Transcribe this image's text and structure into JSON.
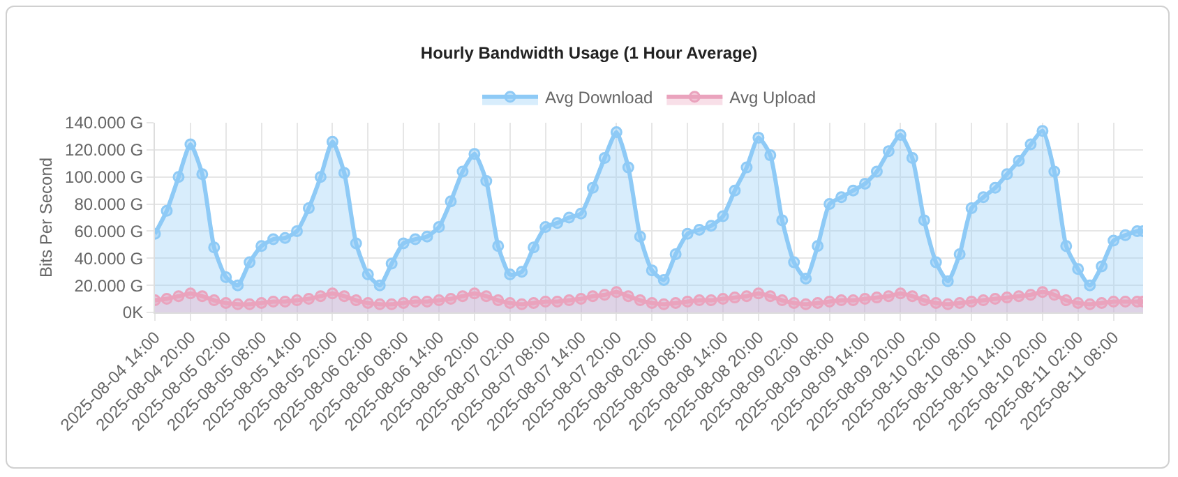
{
  "chart_data": {
    "type": "area",
    "title": "Hourly Bandwidth Usage (1 Hour Average)",
    "ylabel": "Bits Per Second",
    "x": [
      "2025-08-04T14:00",
      "2025-08-04T16:00",
      "2025-08-04T18:00",
      "2025-08-04T20:00",
      "2025-08-04T22:00",
      "2025-08-05T00:00",
      "2025-08-05T02:00",
      "2025-08-05T04:00",
      "2025-08-05T06:00",
      "2025-08-05T08:00",
      "2025-08-05T10:00",
      "2025-08-05T12:00",
      "2025-08-05T14:00",
      "2025-08-05T16:00",
      "2025-08-05T18:00",
      "2025-08-05T20:00",
      "2025-08-05T22:00",
      "2025-08-06T00:00",
      "2025-08-06T02:00",
      "2025-08-06T04:00",
      "2025-08-06T06:00",
      "2025-08-06T08:00",
      "2025-08-06T10:00",
      "2025-08-06T12:00",
      "2025-08-06T14:00",
      "2025-08-06T16:00",
      "2025-08-06T18:00",
      "2025-08-06T20:00",
      "2025-08-06T22:00",
      "2025-08-07T00:00",
      "2025-08-07T02:00",
      "2025-08-07T04:00",
      "2025-08-07T06:00",
      "2025-08-07T08:00",
      "2025-08-07T10:00",
      "2025-08-07T12:00",
      "2025-08-07T14:00",
      "2025-08-07T16:00",
      "2025-08-07T18:00",
      "2025-08-07T20:00",
      "2025-08-07T22:00",
      "2025-08-08T00:00",
      "2025-08-08T02:00",
      "2025-08-08T04:00",
      "2025-08-08T06:00",
      "2025-08-08T08:00",
      "2025-08-08T10:00",
      "2025-08-08T12:00",
      "2025-08-08T14:00",
      "2025-08-08T16:00",
      "2025-08-08T18:00",
      "2025-08-08T20:00",
      "2025-08-08T22:00",
      "2025-08-09T00:00",
      "2025-08-09T02:00",
      "2025-08-09T04:00",
      "2025-08-09T06:00",
      "2025-08-09T08:00",
      "2025-08-09T10:00",
      "2025-08-09T12:00",
      "2025-08-09T14:00",
      "2025-08-09T16:00",
      "2025-08-09T18:00",
      "2025-08-09T20:00",
      "2025-08-09T22:00",
      "2025-08-10T00:00",
      "2025-08-10T02:00",
      "2025-08-10T04:00",
      "2025-08-10T06:00",
      "2025-08-10T08:00",
      "2025-08-10T10:00",
      "2025-08-10T12:00",
      "2025-08-10T14:00",
      "2025-08-10T16:00",
      "2025-08-10T18:00",
      "2025-08-10T20:00",
      "2025-08-10T22:00",
      "2025-08-11T00:00",
      "2025-08-11T02:00",
      "2025-08-11T04:00",
      "2025-08-11T06:00",
      "2025-08-11T08:00",
      "2025-08-11T10:00",
      "2025-08-11T12:00",
      "2025-08-11T13:00"
    ],
    "series": [
      {
        "name": "Avg Download",
        "color": "#8ecaf6",
        "values": [
          58000.0,
          75000.0,
          100000.0,
          124000.0,
          102000.0,
          48000.0,
          26000.0,
          20000.0,
          37000.0,
          49000.0,
          54000.0,
          55000.0,
          60000.0,
          77000.0,
          100000.0,
          126000.0,
          103000.0,
          51000.0,
          28000.0,
          20000.0,
          36000.0,
          51000.0,
          54000.0,
          56000.0,
          63000.0,
          82000.0,
          104000.0,
          117000.0,
          97000.0,
          49000.0,
          28000.0,
          30000.0,
          48000.0,
          63000.0,
          66000.0,
          70000.0,
          73000.0,
          92000.0,
          114000.0,
          133000.0,
          107000.0,
          56000.0,
          31000.0,
          24000.0,
          43000.0,
          58000.0,
          61000.0,
          64000.0,
          71000.0,
          90000.0,
          107000.0,
          129000.0,
          116000.0,
          68000.0,
          37000.0,
          25000.0,
          49000.0,
          80000.0,
          85000.0,
          90000.0,
          95000.0,
          104000.0,
          119000.0,
          131000.0,
          114000.0,
          68000.0,
          37000.0,
          23000.0,
          43000.0,
          77000.0,
          85000.0,
          92000.0,
          102000.0,
          112000.0,
          124000.0,
          134000.0,
          104000.0,
          49000.0,
          32000.0,
          20000.0,
          34000.0,
          53000.0,
          57000.0,
          60000.0,
          60000.0
        ]
      },
      {
        "name": "Avg Upload",
        "color": "#eaa3bd",
        "values": [
          9000.0,
          10000.0,
          12000.0,
          14000.0,
          12000.0,
          9000.0,
          7000.0,
          6000.0,
          6000.0,
          7000.0,
          8000.0,
          8000.0,
          9000.0,
          10000.0,
          12000.0,
          14000.0,
          12000.0,
          9000.0,
          7000.0,
          6000.0,
          6000.0,
          7000.0,
          8000.0,
          8000.0,
          9000.0,
          10000.0,
          12000.0,
          14000.0,
          12000.0,
          9000.0,
          7000.0,
          6000.0,
          7000.0,
          8000.0,
          8000.0,
          9000.0,
          10000.0,
          12000.0,
          13000.0,
          15000.0,
          12000.0,
          9000.0,
          7000.0,
          6000.0,
          7000.0,
          8000.0,
          9000.0,
          9000.0,
          10000.0,
          11000.0,
          12000.0,
          14000.0,
          12000.0,
          9000.0,
          7000.0,
          6000.0,
          7000.0,
          8000.0,
          9000.0,
          9000.0,
          10000.0,
          11000.0,
          12000.0,
          14000.0,
          12000.0,
          9000.0,
          7000.0,
          6000.0,
          7000.0,
          8000.0,
          9000.0,
          10000.0,
          11000.0,
          12000.0,
          13000.0,
          15000.0,
          13000.0,
          9000.0,
          7000.0,
          6000.0,
          7000.0,
          8000.0,
          8000.0,
          8000.0,
          8000.0
        ]
      }
    ],
    "xlim": [
      "2025-08-04T14:00",
      "2025-08-11T13:00"
    ],
    "xticks": [
      {
        "value": "2025-08-04T14:00",
        "label": "2025-08-04 14:00"
      },
      {
        "value": "2025-08-04T20:00",
        "label": "2025-08-04 20:00"
      },
      {
        "value": "2025-08-05T02:00",
        "label": "2025-08-05 02:00"
      },
      {
        "value": "2025-08-05T08:00",
        "label": "2025-08-05 08:00"
      },
      {
        "value": "2025-08-05T14:00",
        "label": "2025-08-05 14:00"
      },
      {
        "value": "2025-08-05T20:00",
        "label": "2025-08-05 20:00"
      },
      {
        "value": "2025-08-06T02:00",
        "label": "2025-08-06 02:00"
      },
      {
        "value": "2025-08-06T08:00",
        "label": "2025-08-06 08:00"
      },
      {
        "value": "2025-08-06T14:00",
        "label": "2025-08-06 14:00"
      },
      {
        "value": "2025-08-06T20:00",
        "label": "2025-08-06 20:00"
      },
      {
        "value": "2025-08-07T02:00",
        "label": "2025-08-07 02:00"
      },
      {
        "value": "2025-08-07T08:00",
        "label": "2025-08-07 08:00"
      },
      {
        "value": "2025-08-07T14:00",
        "label": "2025-08-07 14:00"
      },
      {
        "value": "2025-08-07T20:00",
        "label": "2025-08-07 20:00"
      },
      {
        "value": "2025-08-08T02:00",
        "label": "2025-08-08 02:00"
      },
      {
        "value": "2025-08-08T08:00",
        "label": "2025-08-08 08:00"
      },
      {
        "value": "2025-08-08T14:00",
        "label": "2025-08-08 14:00"
      },
      {
        "value": "2025-08-08T20:00",
        "label": "2025-08-08 20:00"
      },
      {
        "value": "2025-08-09T02:00",
        "label": "2025-08-09 02:00"
      },
      {
        "value": "2025-08-09T08:00",
        "label": "2025-08-09 08:00"
      },
      {
        "value": "2025-08-09T14:00",
        "label": "2025-08-09 14:00"
      },
      {
        "value": "2025-08-09T20:00",
        "label": "2025-08-09 20:00"
      },
      {
        "value": "2025-08-10T02:00",
        "label": "2025-08-10 02:00"
      },
      {
        "value": "2025-08-10T08:00",
        "label": "2025-08-10 08:00"
      },
      {
        "value": "2025-08-10T14:00",
        "label": "2025-08-10 14:00"
      },
      {
        "value": "2025-08-10T20:00",
        "label": "2025-08-10 20:00"
      },
      {
        "value": "2025-08-11T02:00",
        "label": "2025-08-11 02:00"
      },
      {
        "value": "2025-08-11T08:00",
        "label": "2025-08-11 08:00"
      }
    ],
    "ylim": [
      0,
      140000.0
    ],
    "yticks": [
      {
        "value": 0,
        "label": "0K"
      },
      {
        "value": 20000.0,
        "label": "20.000 G"
      },
      {
        "value": 40000.0,
        "label": "40.000 G"
      },
      {
        "value": 60000.0,
        "label": "60.000 G"
      },
      {
        "value": 80000.0,
        "label": "80.000 G"
      },
      {
        "value": 100000.0,
        "label": "100.000 G"
      },
      {
        "value": 120000.0,
        "label": "120.000 G"
      },
      {
        "value": 140000.0,
        "label": "140.000 G"
      }
    ],
    "grid": true,
    "legend": "top",
    "marker": "circle",
    "line_style": "solid"
  }
}
